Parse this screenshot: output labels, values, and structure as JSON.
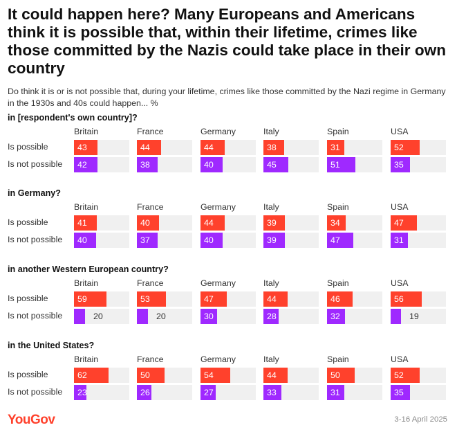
{
  "title": "It could happen here? Many Europeans and Americans think it is possible that, within their lifetime, crimes like those committed by the Nazis could take place in their own country",
  "subtitle": "Do think it is or is not possible that, during your lifetime, crimes like those committed by the Nazi regime in Germany in the 1930s and 40s could happen... %",
  "footer": {
    "brand": "YouGov",
    "date": "3-16 April 2025"
  },
  "colors": {
    "possible": "#ff412c",
    "not_possible": "#9f29ff",
    "track": "#f0f0f0"
  },
  "chart_data": {
    "type": "bar",
    "orientation": "horizontal",
    "unit": "%",
    "xlim": [
      0,
      100
    ],
    "countries": [
      "Britain",
      "France",
      "Germany",
      "Italy",
      "Spain",
      "USA"
    ],
    "row_labels": [
      "Is possible",
      "Is not possible"
    ],
    "panels": [
      {
        "title": "in [respondent's own country]?",
        "possible": [
          43,
          44,
          44,
          38,
          31,
          52
        ],
        "not_possible": [
          42,
          38,
          40,
          45,
          51,
          35
        ]
      },
      {
        "title": "in Germany?",
        "possible": [
          41,
          40,
          44,
          39,
          34,
          47
        ],
        "not_possible": [
          40,
          37,
          40,
          39,
          47,
          31
        ]
      },
      {
        "title": "in another Western European country?",
        "possible": [
          59,
          53,
          47,
          44,
          46,
          56
        ],
        "not_possible": [
          20,
          20,
          30,
          28,
          32,
          19
        ]
      },
      {
        "title": "in the United States?",
        "possible": [
          62,
          50,
          54,
          44,
          50,
          52
        ],
        "not_possible": [
          23,
          26,
          27,
          33,
          31,
          35
        ]
      }
    ]
  }
}
